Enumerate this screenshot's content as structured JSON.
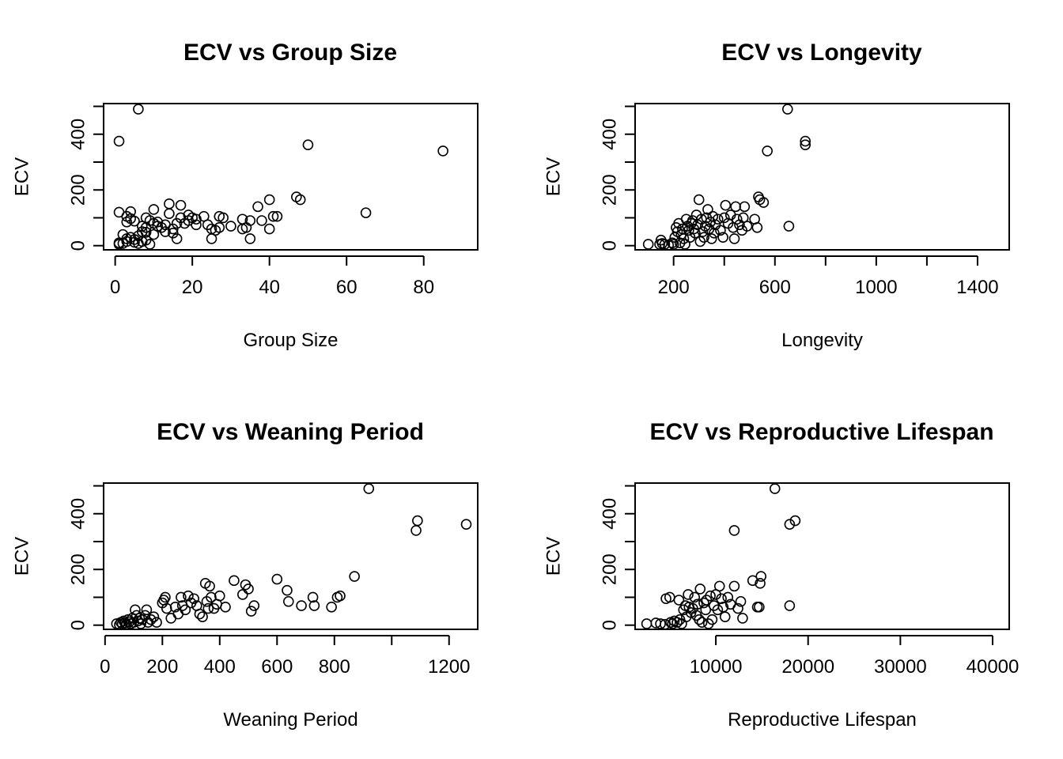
{
  "chart_data": [
    {
      "type": "scatter",
      "title": "ECV vs Group Size",
      "xlabel": "Group Size",
      "ylabel": "ECV",
      "xlim": [
        -3,
        94
      ],
      "ylim": [
        -15,
        510
      ],
      "xticks": [
        0,
        20,
        40,
        60,
        80
      ],
      "yticks": [
        0,
        100,
        200,
        300,
        400,
        500
      ],
      "ytick_labels": [
        "0",
        "",
        "200",
        "",
        "400",
        ""
      ],
      "points": [
        [
          1,
          375
        ],
        [
          6,
          490
        ],
        [
          50,
          362
        ],
        [
          85,
          340
        ],
        [
          65,
          118
        ],
        [
          1,
          120
        ],
        [
          4,
          122
        ],
        [
          3,
          105
        ],
        [
          4,
          97
        ],
        [
          3,
          85
        ],
        [
          5,
          88
        ],
        [
          2,
          40
        ],
        [
          1,
          10
        ],
        [
          1,
          5
        ],
        [
          2,
          8
        ],
        [
          3,
          15
        ],
        [
          3,
          25
        ],
        [
          4,
          30
        ],
        [
          5,
          12
        ],
        [
          5,
          22
        ],
        [
          6,
          8
        ],
        [
          6,
          35
        ],
        [
          7,
          15
        ],
        [
          7,
          50
        ],
        [
          7,
          70
        ],
        [
          8,
          65
        ],
        [
          8,
          48
        ],
        [
          8,
          20
        ],
        [
          8,
          100
        ],
        [
          9,
          90
        ],
        [
          9,
          5
        ],
        [
          10,
          130
        ],
        [
          10,
          80
        ],
        [
          10,
          40
        ],
        [
          11,
          70
        ],
        [
          11,
          85
        ],
        [
          12,
          65
        ],
        [
          13,
          50
        ],
        [
          13,
          75
        ],
        [
          14,
          150
        ],
        [
          14,
          115
        ],
        [
          15,
          60
        ],
        [
          15,
          45
        ],
        [
          16,
          80
        ],
        [
          16,
          25
        ],
        [
          17,
          145
        ],
        [
          17,
          100
        ],
        [
          18,
          80
        ],
        [
          19,
          110
        ],
        [
          19,
          90
        ],
        [
          20,
          100
        ],
        [
          21,
          95
        ],
        [
          21,
          75
        ],
        [
          23,
          105
        ],
        [
          24,
          75
        ],
        [
          25,
          60
        ],
        [
          25,
          25
        ],
        [
          26,
          55
        ],
        [
          27,
          105
        ],
        [
          27,
          65
        ],
        [
          28,
          100
        ],
        [
          30,
          70
        ],
        [
          33,
          95
        ],
        [
          33,
          60
        ],
        [
          34,
          65
        ],
        [
          35,
          90
        ],
        [
          35,
          25
        ],
        [
          37,
          140
        ],
        [
          38,
          90
        ],
        [
          40,
          165
        ],
        [
          40,
          60
        ],
        [
          41,
          105
        ],
        [
          42,
          105
        ],
        [
          47,
          175
        ],
        [
          48,
          165
        ]
      ]
    },
    {
      "type": "scatter",
      "title": "ECV vs Longevity",
      "xlabel": "Longevity",
      "ylabel": "ECV",
      "xlim": [
        48,
        1525
      ],
      "ylim": [
        -15,
        510
      ],
      "xticks": [
        200,
        400,
        600,
        800,
        1000,
        1200,
        1400
      ],
      "xtick_labels": [
        "200",
        "",
        "600",
        "",
        "1000",
        "",
        "1400"
      ],
      "yticks": [
        0,
        100,
        200,
        300,
        400,
        500
      ],
      "ytick_labels": [
        "0",
        "",
        "200",
        "",
        "400",
        ""
      ],
      "points": [
        [
          650,
          490
        ],
        [
          720,
          375
        ],
        [
          720,
          362
        ],
        [
          570,
          340
        ],
        [
          655,
          70
        ],
        [
          100,
          5
        ],
        [
          145,
          5
        ],
        [
          150,
          20
        ],
        [
          155,
          8
        ],
        [
          165,
          5
        ],
        [
          180,
          2
        ],
        [
          195,
          10
        ],
        [
          200,
          5
        ],
        [
          205,
          30
        ],
        [
          210,
          65
        ],
        [
          215,
          50
        ],
        [
          220,
          80
        ],
        [
          225,
          10
        ],
        [
          230,
          40
        ],
        [
          235,
          60
        ],
        [
          240,
          25
        ],
        [
          245,
          5
        ],
        [
          250,
          95
        ],
        [
          255,
          70
        ],
        [
          260,
          55
        ],
        [
          265,
          30
        ],
        [
          270,
          80
        ],
        [
          275,
          90
        ],
        [
          280,
          60
        ],
        [
          285,
          45
        ],
        [
          290,
          110
        ],
        [
          295,
          75
        ],
        [
          300,
          165
        ],
        [
          305,
          15
        ],
        [
          310,
          95
        ],
        [
          315,
          50
        ],
        [
          320,
          30
        ],
        [
          325,
          70
        ],
        [
          330,
          100
        ],
        [
          335,
          130
        ],
        [
          340,
          60
        ],
        [
          345,
          85
        ],
        [
          350,
          25
        ],
        [
          355,
          105
        ],
        [
          360,
          45
        ],
        [
          365,
          75
        ],
        [
          375,
          95
        ],
        [
          385,
          55
        ],
        [
          395,
          30
        ],
        [
          400,
          100
        ],
        [
          405,
          145
        ],
        [
          415,
          80
        ],
        [
          425,
          110
        ],
        [
          435,
          65
        ],
        [
          440,
          25
        ],
        [
          445,
          140
        ],
        [
          450,
          95
        ],
        [
          460,
          75
        ],
        [
          470,
          55
        ],
        [
          475,
          100
        ],
        [
          480,
          140
        ],
        [
          490,
          70
        ],
        [
          520,
          95
        ],
        [
          530,
          65
        ],
        [
          535,
          175
        ],
        [
          540,
          165
        ],
        [
          555,
          155
        ]
      ]
    },
    {
      "type": "scatter",
      "title": "ECV vs Weaning Period",
      "xlabel": "Weaning Period",
      "ylabel": "ECV",
      "xlim": [
        -5,
        1300
      ],
      "ylim": [
        -15,
        510
      ],
      "xticks": [
        0,
        200,
        400,
        600,
        800,
        1000,
        1200
      ],
      "xtick_labels": [
        "0",
        "200",
        "400",
        "600",
        "800",
        "",
        "1200"
      ],
      "yticks": [
        0,
        100,
        200,
        300,
        400,
        500
      ],
      "ytick_labels": [
        "0",
        "",
        "200",
        "",
        "400",
        ""
      ],
      "points": [
        [
          920,
          490
        ],
        [
          1090,
          375
        ],
        [
          1085,
          340
        ],
        [
          1260,
          362
        ],
        [
          40,
          5
        ],
        [
          50,
          2
        ],
        [
          55,
          10
        ],
        [
          60,
          5
        ],
        [
          65,
          15
        ],
        [
          70,
          8
        ],
        [
          75,
          3
        ],
        [
          80,
          20
        ],
        [
          85,
          12
        ],
        [
          90,
          5
        ],
        [
          95,
          25
        ],
        [
          100,
          10
        ],
        [
          105,
          55
        ],
        [
          110,
          35
        ],
        [
          115,
          15
        ],
        [
          120,
          25
        ],
        [
          125,
          5
        ],
        [
          130,
          20
        ],
        [
          140,
          35
        ],
        [
          145,
          55
        ],
        [
          150,
          10
        ],
        [
          160,
          20
        ],
        [
          170,
          30
        ],
        [
          180,
          10
        ],
        [
          200,
          80
        ],
        [
          205,
          90
        ],
        [
          210,
          100
        ],
        [
          215,
          60
        ],
        [
          230,
          25
        ],
        [
          245,
          65
        ],
        [
          255,
          40
        ],
        [
          265,
          100
        ],
        [
          270,
          70
        ],
        [
          280,
          55
        ],
        [
          290,
          105
        ],
        [
          300,
          80
        ],
        [
          310,
          95
        ],
        [
          320,
          70
        ],
        [
          330,
          40
        ],
        [
          340,
          30
        ],
        [
          350,
          150
        ],
        [
          355,
          85
        ],
        [
          360,
          60
        ],
        [
          365,
          140
        ],
        [
          370,
          100
        ],
        [
          380,
          60
        ],
        [
          390,
          75
        ],
        [
          400,
          105
        ],
        [
          420,
          65
        ],
        [
          450,
          160
        ],
        [
          480,
          110
        ],
        [
          490,
          145
        ],
        [
          500,
          130
        ],
        [
          510,
          50
        ],
        [
          520,
          70
        ],
        [
          600,
          165
        ],
        [
          635,
          125
        ],
        [
          640,
          85
        ],
        [
          685,
          70
        ],
        [
          725,
          100
        ],
        [
          730,
          70
        ],
        [
          790,
          65
        ],
        [
          810,
          100
        ],
        [
          820,
          105
        ],
        [
          870,
          175
        ]
      ]
    },
    {
      "type": "scatter",
      "title": "ECV vs Reproductive Lifespan",
      "xlabel": "Reproductive Lifespan",
      "ylabel": "ECV",
      "xlim": [
        1250,
        41800
      ],
      "ylim": [
        -15,
        510
      ],
      "xticks": [
        10000,
        20000,
        30000,
        40000
      ],
      "yticks": [
        0,
        100,
        200,
        300,
        400,
        500
      ],
      "ytick_labels": [
        "0",
        "",
        "200",
        "",
        "400",
        ""
      ],
      "points": [
        [
          16400,
          490
        ],
        [
          18600,
          375
        ],
        [
          18000,
          362
        ],
        [
          12000,
          340
        ],
        [
          18000,
          70
        ],
        [
          2500,
          5
        ],
        [
          3500,
          8
        ],
        [
          4000,
          5
        ],
        [
          4500,
          3
        ],
        [
          4600,
          95
        ],
        [
          5000,
          100
        ],
        [
          5100,
          10
        ],
        [
          5300,
          5
        ],
        [
          5500,
          15
        ],
        [
          5800,
          10
        ],
        [
          6000,
          90
        ],
        [
          6100,
          20
        ],
        [
          6300,
          5
        ],
        [
          6500,
          55
        ],
        [
          6700,
          70
        ],
        [
          6800,
          30
        ],
        [
          7000,
          110
        ],
        [
          7100,
          65
        ],
        [
          7300,
          45
        ],
        [
          7500,
          60
        ],
        [
          7700,
          100
        ],
        [
          7900,
          35
        ],
        [
          8000,
          75
        ],
        [
          8200,
          20
        ],
        [
          8300,
          130
        ],
        [
          8500,
          10
        ],
        [
          8700,
          80
        ],
        [
          8900,
          55
        ],
        [
          9000,
          90
        ],
        [
          9200,
          5
        ],
        [
          9400,
          105
        ],
        [
          9600,
          20
        ],
        [
          9800,
          70
        ],
        [
          10000,
          110
        ],
        [
          10200,
          55
        ],
        [
          10400,
          140
        ],
        [
          10600,
          95
        ],
        [
          10800,
          65
        ],
        [
          11000,
          30
        ],
        [
          11300,
          100
        ],
        [
          11600,
          75
        ],
        [
          12000,
          140
        ],
        [
          12400,
          60
        ],
        [
          12700,
          85
        ],
        [
          12900,
          25
        ],
        [
          14000,
          160
        ],
        [
          14500,
          65
        ],
        [
          14700,
          65
        ],
        [
          14800,
          150
        ],
        [
          14900,
          175
        ]
      ]
    }
  ]
}
